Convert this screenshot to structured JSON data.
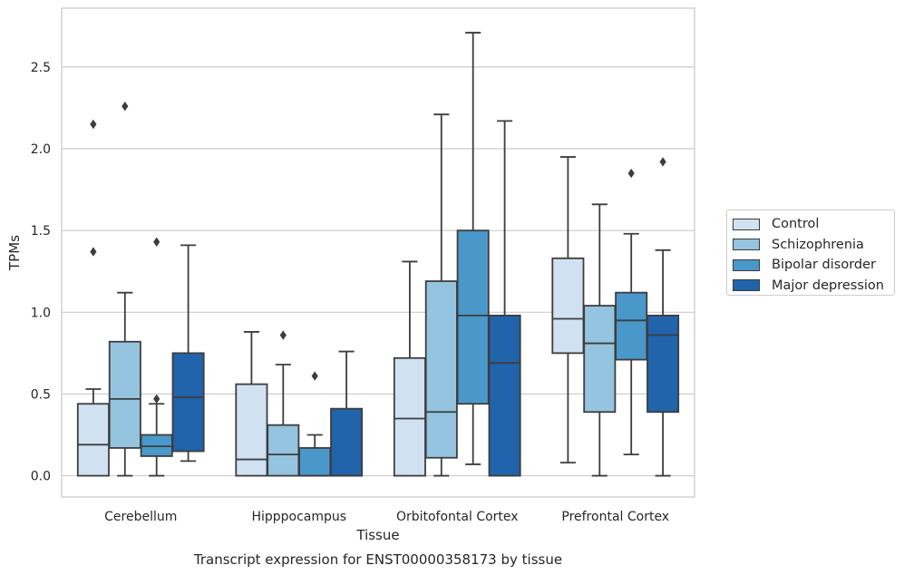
{
  "chart_data": {
    "type": "box",
    "title": "Transcript expression for ENST00000358173 by tissue",
    "xlabel": "Tissue",
    "ylabel": "TPMs",
    "ylim": [
      -0.13,
      2.86
    ],
    "yticks": [
      "0.0",
      "0.5",
      "1.0",
      "1.5",
      "2.0",
      "2.5"
    ],
    "grid": true,
    "legend_position": "right",
    "categories": [
      "Cerebellum",
      "Hipppocampus",
      "Orbitofontal Cortex",
      "Prefrontal Cortex"
    ],
    "series": [
      {
        "name": "Control",
        "color": "#d0e1f2",
        "boxes": [
          {
            "whislo": 0.0,
            "q1": 0.0,
            "med": 0.19,
            "q3": 0.44,
            "whishi": 0.53,
            "fliers": [
              1.37,
              2.15
            ]
          },
          {
            "whislo": 0.0,
            "q1": 0.0,
            "med": 0.1,
            "q3": 0.56,
            "whishi": 0.88,
            "fliers": []
          },
          {
            "whislo": 0.0,
            "q1": 0.0,
            "med": 0.35,
            "q3": 0.72,
            "whishi": 1.31,
            "fliers": []
          },
          {
            "whislo": 0.08,
            "q1": 0.75,
            "med": 0.96,
            "q3": 1.33,
            "whishi": 1.95,
            "fliers": []
          }
        ]
      },
      {
        "name": "Schizophrenia",
        "color": "#94c4df",
        "boxes": [
          {
            "whislo": 0.0,
            "q1": 0.17,
            "med": 0.47,
            "q3": 0.82,
            "whishi": 1.12,
            "fliers": [
              2.26
            ]
          },
          {
            "whislo": 0.0,
            "q1": 0.0,
            "med": 0.13,
            "q3": 0.31,
            "whishi": 0.68,
            "fliers": [
              0.86
            ]
          },
          {
            "whislo": 0.0,
            "q1": 0.11,
            "med": 0.39,
            "q3": 1.19,
            "whishi": 2.21,
            "fliers": []
          },
          {
            "whislo": 0.0,
            "q1": 0.39,
            "med": 0.81,
            "q3": 1.04,
            "whishi": 1.66,
            "fliers": []
          }
        ]
      },
      {
        "name": "Bipolar disorder",
        "color": "#4a98c9",
        "boxes": [
          {
            "whislo": 0.0,
            "q1": 0.12,
            "med": 0.18,
            "q3": 0.25,
            "whishi": 0.44,
            "fliers": [
              0.47,
              1.43
            ]
          },
          {
            "whislo": 0.0,
            "q1": 0.0,
            "med": 0.0,
            "q3": 0.17,
            "whishi": 0.25,
            "fliers": [
              0.61
            ]
          },
          {
            "whislo": 0.07,
            "q1": 0.44,
            "med": 0.98,
            "q3": 1.5,
            "whishi": 2.71,
            "fliers": []
          },
          {
            "whislo": 0.13,
            "q1": 0.71,
            "med": 0.95,
            "q3": 1.12,
            "whishi": 1.48,
            "fliers": [
              1.85
            ]
          }
        ]
      },
      {
        "name": "Major depression",
        "color": "#2164ab",
        "boxes": [
          {
            "whislo": 0.09,
            "q1": 0.15,
            "med": 0.48,
            "q3": 0.75,
            "whishi": 1.41,
            "fliers": []
          },
          {
            "whislo": 0.0,
            "q1": 0.0,
            "med": 0.0,
            "q3": 0.41,
            "whishi": 0.76,
            "fliers": []
          },
          {
            "whislo": 0.0,
            "q1": 0.0,
            "med": 0.69,
            "q3": 0.98,
            "whishi": 2.17,
            "fliers": []
          },
          {
            "whislo": 0.0,
            "q1": 0.39,
            "med": 0.86,
            "q3": 0.98,
            "whishi": 1.38,
            "fliers": [
              1.92
            ]
          }
        ]
      }
    ]
  }
}
